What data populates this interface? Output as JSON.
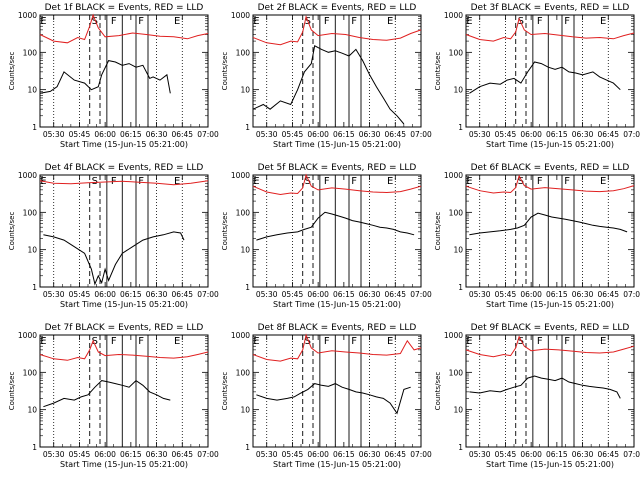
{
  "chart_data": {
    "type": "line",
    "figure_layout": "3x3 grid of panels",
    "x_tick_labels": [
      "05:30",
      "05:45",
      "06:00",
      "06:15",
      "06:30",
      "06:45",
      "07:00"
    ],
    "x_ticks_minutes": [
      0,
      15,
      30,
      45,
      60,
      75,
      90
    ],
    "xlim_minutes": [
      -8,
      90
    ],
    "xlabel": "Start Time (15-Jun-15 05:21:00)",
    "ylabel": "Counts/sec",
    "yscale": "log",
    "ylim": [
      1,
      1000
    ],
    "y_tick_labels": [
      "1",
      "10",
      "100",
      "1000"
    ],
    "y_tick_values": [
      1,
      10,
      100,
      1000
    ],
    "grid": false,
    "colors": {
      "events": "#000000",
      "lld": "#e02020"
    },
    "shared_markers": {
      "dotted_lines_minutes": [
        0,
        15,
        60,
        75
      ],
      "dashed_lines_minutes": [
        21,
        27
      ],
      "solid_lines_minutes": [
        31,
        40,
        48,
        55
      ],
      "letters": [
        {
          "text": "E",
          "minute": -6
        },
        {
          "text": "S",
          "minute": 24
        },
        {
          "text": "F",
          "minute": 35
        },
        {
          "text": "F",
          "minute": 51
        },
        {
          "text": "E",
          "minute": 72
        }
      ]
    },
    "panels": [
      {
        "title": "Det 1f BLACK = Events, RED = LLD",
        "series": [
          {
            "name": "Events",
            "minutes": [
              -8,
              -2,
              2,
              6,
              12,
              18,
              22,
              26,
              28,
              32,
              36,
              40,
              44,
              48,
              52,
              56,
              58,
              62,
              66,
              68
            ],
            "values": [
              8,
              9,
              12,
              30,
              18,
              15,
              10,
              12,
              25,
              60,
              55,
              45,
              50,
              40,
              45,
              20,
              22,
              18,
              25,
              8
            ]
          },
          {
            "name": "LLD",
            "minutes": [
              -8,
              0,
              8,
              14,
              18,
              21,
              23,
              26,
              30,
              38,
              46,
              54,
              62,
              70,
              78,
              84,
              90
            ],
            "values": [
              300,
              200,
              180,
              250,
              220,
              500,
              1000,
              450,
              260,
              280,
              330,
              300,
              270,
              260,
              230,
              280,
              320
            ]
          }
        ]
      },
      {
        "title": "Det 2f BLACK = Events, RED = LLD",
        "series": [
          {
            "name": "Events",
            "minutes": [
              -8,
              -2,
              2,
              8,
              14,
              18,
              22,
              26,
              28,
              32,
              36,
              40,
              44,
              48,
              52,
              56,
              60,
              64,
              68,
              72,
              76,
              80
            ],
            "values": [
              3,
              4,
              3,
              5,
              4,
              10,
              30,
              50,
              150,
              120,
              100,
              110,
              95,
              80,
              120,
              60,
              25,
              12,
              6,
              3,
              2,
              1.2
            ]
          },
          {
            "name": "LLD",
            "minutes": [
              -8,
              0,
              8,
              14,
              18,
              21,
              23,
              26,
              30,
              38,
              46,
              54,
              62,
              70,
              78,
              84,
              90
            ],
            "values": [
              250,
              180,
              160,
              200,
              190,
              350,
              900,
              400,
              280,
              320,
              300,
              250,
              220,
              210,
              240,
              320,
              400
            ]
          }
        ]
      },
      {
        "title": "Det 3f BLACK = Events, RED = LLD",
        "series": [
          {
            "name": "Events",
            "minutes": [
              -6,
              0,
              6,
              12,
              16,
              20,
              24,
              28,
              32,
              36,
              40,
              44,
              48,
              52,
              56,
              60,
              66,
              70,
              74,
              78,
              82
            ],
            "values": [
              8,
              12,
              15,
              14,
              18,
              20,
              15,
              30,
              55,
              50,
              40,
              35,
              40,
              30,
              28,
              25,
              30,
              22,
              18,
              15,
              10
            ]
          },
          {
            "name": "LLD",
            "minutes": [
              -8,
              0,
              8,
              14,
              18,
              21,
              23,
              26,
              30,
              38,
              46,
              54,
              62,
              70,
              78,
              84,
              90
            ],
            "values": [
              300,
              220,
              200,
              250,
              230,
              350,
              800,
              400,
              300,
              320,
              290,
              260,
              240,
              250,
              230,
              280,
              330
            ]
          }
        ]
      },
      {
        "title": "Det 4f BLACK = Events, RED = LLD",
        "series": [
          {
            "name": "Events",
            "minutes": [
              -6,
              0,
              6,
              12,
              18,
              22,
              24,
              26,
              28,
              30,
              32,
              36,
              40,
              46,
              52,
              58,
              64,
              70,
              74,
              76
            ],
            "values": [
              25,
              22,
              18,
              12,
              8,
              3,
              1.2,
              2,
              1.3,
              3,
              1.5,
              4,
              8,
              12,
              18,
              22,
              25,
              30,
              28,
              18
            ]
          },
          {
            "name": "LLD",
            "minutes": [
              -8,
              0,
              10,
              20,
              30,
              40,
              50,
              60,
              70,
              80,
              90
            ],
            "values": [
              700,
              600,
              580,
              620,
              650,
              680,
              640,
              600,
              550,
              600,
              700
            ]
          }
        ]
      },
      {
        "title": "Det 5f BLACK = Events, RED = LLD",
        "series": [
          {
            "name": "Events",
            "minutes": [
              -6,
              0,
              6,
              12,
              18,
              22,
              26,
              30,
              34,
              38,
              42,
              46,
              50,
              54,
              58,
              62,
              66,
              70,
              74,
              78,
              82,
              86
            ],
            "values": [
              18,
              22,
              25,
              28,
              30,
              35,
              40,
              70,
              100,
              90,
              80,
              70,
              60,
              55,
              50,
              45,
              40,
              38,
              35,
              30,
              28,
              25
            ]
          },
          {
            "name": "LLD",
            "minutes": [
              -8,
              0,
              8,
              14,
              18,
              21,
              23,
              26,
              30,
              38,
              46,
              54,
              62,
              70,
              78,
              84,
              90
            ],
            "values": [
              500,
              350,
              300,
              330,
              320,
              450,
              1000,
              500,
              400,
              450,
              420,
              380,
              350,
              340,
              360,
              420,
              500
            ]
          }
        ]
      },
      {
        "title": "Det 6f BLACK = Events, RED = LLD",
        "series": [
          {
            "name": "Events",
            "minutes": [
              -6,
              0,
              6,
              12,
              18,
              22,
              26,
              30,
              34,
              38,
              42,
              46,
              50,
              54,
              58,
              62,
              66,
              70,
              74,
              78,
              82,
              86
            ],
            "values": [
              25,
              28,
              30,
              32,
              35,
              38,
              45,
              75,
              95,
              85,
              75,
              70,
              65,
              60,
              55,
              50,
              45,
              42,
              40,
              38,
              35,
              30
            ]
          },
          {
            "name": "LLD",
            "minutes": [
              -8,
              0,
              8,
              14,
              18,
              21,
              23,
              26,
              30,
              38,
              46,
              54,
              62,
              70,
              78,
              84,
              90
            ],
            "values": [
              500,
              380,
              330,
              350,
              340,
              460,
              950,
              520,
              420,
              460,
              430,
              400,
              370,
              360,
              380,
              430,
              520
            ]
          }
        ]
      },
      {
        "title": "Det 7f BLACK = Events, RED = LLD",
        "series": [
          {
            "name": "Events",
            "minutes": [
              -6,
              0,
              6,
              12,
              16,
              20,
              24,
              28,
              32,
              36,
              40,
              44,
              48,
              52,
              56,
              60,
              64,
              68
            ],
            "values": [
              12,
              15,
              20,
              18,
              22,
              25,
              40,
              60,
              55,
              50,
              45,
              40,
              60,
              45,
              30,
              25,
              20,
              18
            ]
          },
          {
            "name": "LLD",
            "minutes": [
              -8,
              0,
              8,
              14,
              18,
              21,
              23,
              26,
              30,
              38,
              46,
              54,
              62,
              70,
              78,
              84,
              90
            ],
            "values": [
              300,
              230,
              210,
              250,
              230,
              400,
              700,
              350,
              280,
              300,
              290,
              270,
              250,
              240,
              260,
              300,
              350
            ]
          }
        ]
      },
      {
        "title": "Det 8f BLACK = Events, RED = LLD",
        "series": [
          {
            "name": "Events",
            "minutes": [
              -6,
              0,
              6,
              12,
              16,
              20,
              24,
              28,
              32,
              36,
              40,
              44,
              48,
              52,
              56,
              60,
              64,
              68,
              72,
              76,
              80,
              84
            ],
            "values": [
              25,
              20,
              18,
              20,
              22,
              28,
              35,
              50,
              45,
              42,
              50,
              40,
              35,
              30,
              28,
              25,
              22,
              20,
              15,
              8,
              35,
              40
            ]
          },
          {
            "name": "LLD",
            "minutes": [
              -8,
              0,
              8,
              14,
              18,
              21,
              23,
              26,
              30,
              38,
              46,
              54,
              62,
              70,
              78,
              82,
              86,
              90
            ],
            "values": [
              300,
              220,
              200,
              240,
              230,
              400,
              1000,
              450,
              330,
              380,
              350,
              330,
              300,
              290,
              320,
              700,
              400,
              450
            ]
          }
        ]
      },
      {
        "title": "Det 9f BLACK = Events, RED = LLD",
        "series": [
          {
            "name": "Events",
            "minutes": [
              -6,
              0,
              6,
              12,
              16,
              20,
              24,
              28,
              32,
              36,
              40,
              44,
              48,
              52,
              56,
              60,
              64,
              68,
              72,
              76,
              80,
              82
            ],
            "values": [
              30,
              28,
              32,
              30,
              35,
              40,
              45,
              70,
              80,
              70,
              65,
              60,
              70,
              55,
              50,
              45,
              42,
              40,
              38,
              35,
              30,
              20
            ]
          },
          {
            "name": "LLD",
            "minutes": [
              -8,
              0,
              8,
              14,
              18,
              21,
              23,
              26,
              30,
              38,
              46,
              54,
              62,
              70,
              78,
              84,
              90
            ],
            "values": [
              400,
              300,
              260,
              300,
              280,
              450,
              900,
              500,
              380,
              420,
              400,
              370,
              340,
              330,
              350,
              420,
              500
            ]
          }
        ]
      }
    ]
  }
}
